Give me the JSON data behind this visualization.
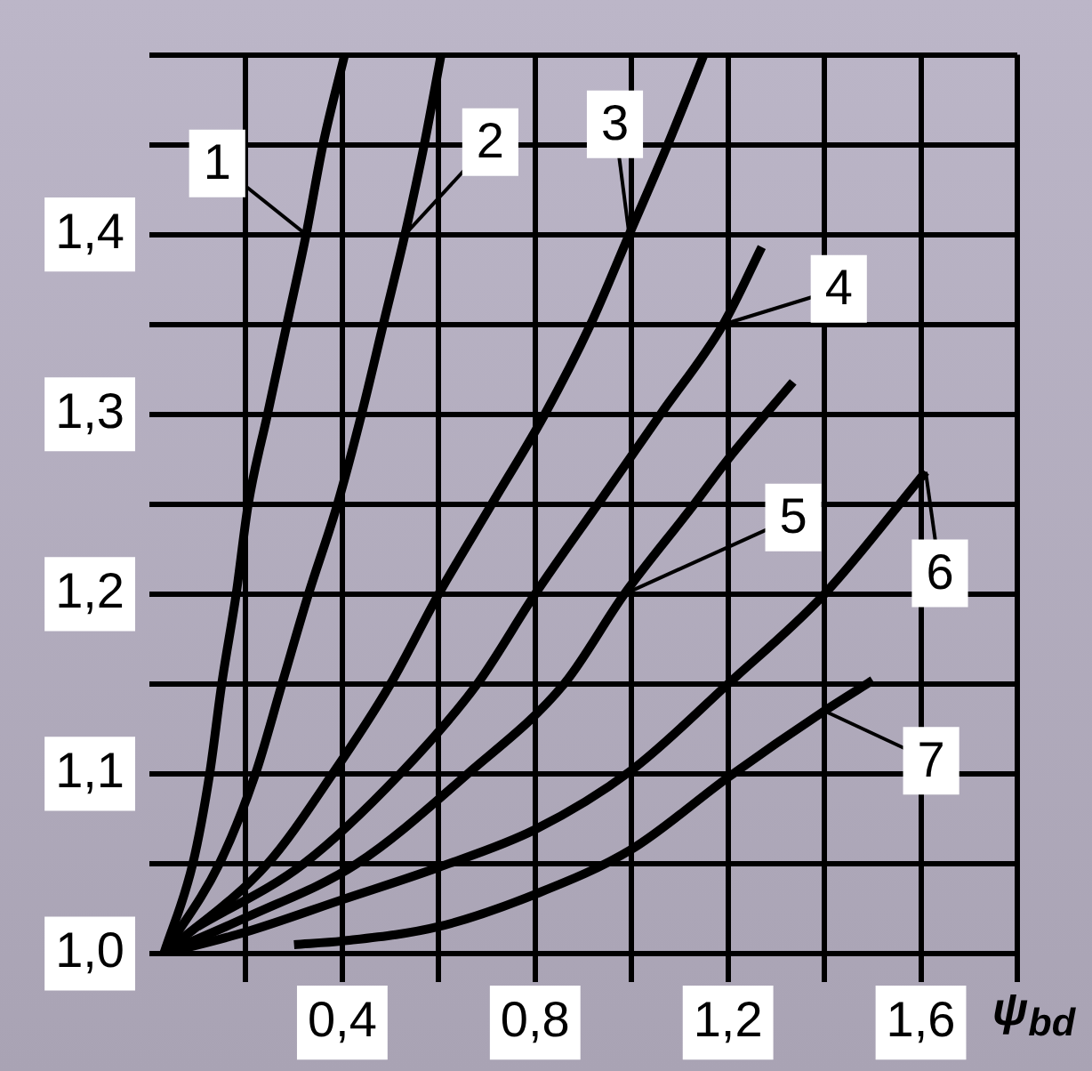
{
  "chart_data": {
    "type": "line",
    "xlabel": "ψ$_{bd}$",
    "xlim": [
      0,
      1.8
    ],
    "xticks": [
      {
        "value": 0.2,
        "label": null
      },
      {
        "value": 0.4,
        "label": "0,4"
      },
      {
        "value": 0.6,
        "label": null
      },
      {
        "value": 0.8,
        "label": "0,8"
      },
      {
        "value": 1.0,
        "label": null
      },
      {
        "value": 1.2,
        "label": "1,2"
      },
      {
        "value": 1.4,
        "label": null
      },
      {
        "value": 1.6,
        "label": "1,6"
      },
      {
        "value": 1.8,
        "label": null
      }
    ],
    "ylim": [
      1.0,
      1.5
    ],
    "yticks": [
      {
        "value": 1.0,
        "label": "1,0"
      },
      {
        "value": 1.05,
        "label": null
      },
      {
        "value": 1.1,
        "label": "1,1"
      },
      {
        "value": 1.15,
        "label": null
      },
      {
        "value": 1.2,
        "label": "1,2"
      },
      {
        "value": 1.25,
        "label": null
      },
      {
        "value": 1.3,
        "label": "1,3"
      },
      {
        "value": 1.35,
        "label": null
      },
      {
        "value": 1.4,
        "label": "1,4"
      },
      {
        "value": 1.45,
        "label": null
      },
      {
        "value": 1.5,
        "label": null
      }
    ],
    "grid": true,
    "legend": "right",
    "marker": "none",
    "line_style": "solid",
    "series": [
      {
        "name": "1",
        "color": "#000000",
        "x": [
          0.03,
          0.09,
          0.125,
          0.15,
          0.18,
          0.205,
          0.245,
          0.285,
          0.325,
          0.36,
          0.405
        ],
        "values": [
          1.0,
          1.05,
          1.1,
          1.15,
          1.2,
          1.25,
          1.3,
          1.35,
          1.4,
          1.45,
          1.5
        ]
      },
      {
        "name": "2",
        "color": "#000000",
        "x": [
          0.03,
          0.145,
          0.22,
          0.275,
          0.33,
          0.39,
          0.44,
          0.485,
          0.53,
          0.57,
          0.605
        ],
        "values": [
          1.0,
          1.05,
          1.1,
          1.15,
          1.2,
          1.25,
          1.3,
          1.35,
          1.4,
          1.45,
          1.5
        ]
      },
      {
        "name": "3",
        "color": "#000000",
        "x": [
          0.03,
          0.245,
          0.38,
          0.5,
          0.6,
          0.71,
          0.82,
          0.915,
          0.995,
          1.075,
          1.15
        ],
        "values": [
          1.0,
          1.05,
          1.1,
          1.15,
          1.2,
          1.25,
          1.3,
          1.35,
          1.4,
          1.45,
          1.5
        ]
      },
      {
        "name": "4",
        "color": "#000000",
        "x": [
          0.1,
          0.32,
          0.52,
          0.68,
          0.8,
          0.93,
          1.06,
          1.19,
          1.27
        ],
        "values": [
          1.015,
          1.05,
          1.1,
          1.15,
          1.2,
          1.25,
          1.3,
          1.35,
          1.393
        ]
      },
      {
        "name": "5",
        "color": "#000000",
        "x": [
          0.03,
          0.2,
          0.43,
          0.66,
          0.86,
          0.985,
          1.13,
          1.2,
          1.335
        ],
        "values": [
          1.0,
          1.02,
          1.05,
          1.1,
          1.15,
          1.2,
          1.25,
          1.275,
          1.318
        ]
      },
      {
        "name": "6",
        "color": "#000000",
        "x": [
          0.03,
          0.2,
          0.4,
          0.6,
          0.8,
          1.0,
          1.2,
          1.4,
          1.61
        ],
        "values": [
          1.0,
          1.012,
          1.03,
          1.048,
          1.069,
          1.102,
          1.15,
          1.2,
          1.268
        ]
      },
      {
        "name": "7",
        "color": "#000000",
        "x": [
          0.3,
          0.4,
          0.6,
          0.8,
          1.0,
          1.2,
          1.4,
          1.5
        ],
        "values": [
          1.005,
          1.007,
          1.015,
          1.033,
          1.058,
          1.098,
          1.135,
          1.152
        ]
      }
    ]
  }
}
